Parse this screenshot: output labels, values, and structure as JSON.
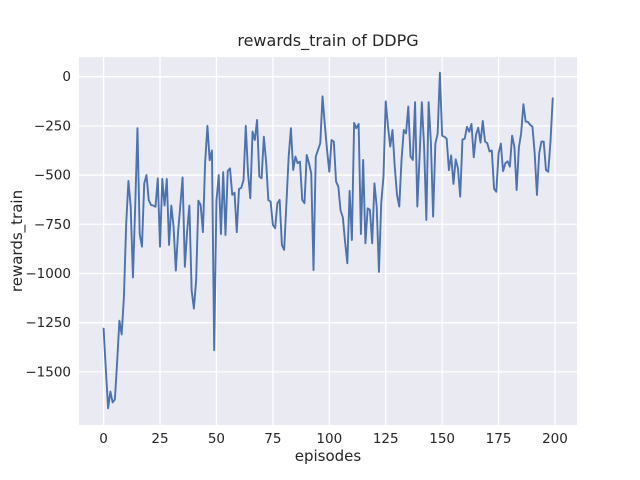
{
  "figure": {
    "title": "rewards_train of DDPG",
    "xlabel": "episodes",
    "ylabel": "rewards_train"
  },
  "colors": {
    "figure_background": "#FFFFFF",
    "plot_background": "#EAEAF2",
    "gridline": "#FFFFFF",
    "line": "#4C72B0",
    "text": "#262626"
  },
  "chart_data": {
    "type": "line",
    "title": "rewards_train of DDPG",
    "xlabel": "episodes",
    "ylabel": "rewards_train",
    "grid": true,
    "legend": false,
    "xlim": [
      -10.9,
      209.75
    ],
    "ylim": [
      -1770,
      100
    ],
    "x_ticks": [
      0,
      25,
      50,
      75,
      100,
      125,
      150,
      175,
      200
    ],
    "x_tick_labels": [
      "0",
      "25",
      "50",
      "75",
      "100",
      "125",
      "150",
      "175",
      "200"
    ],
    "y_ticks": [
      0,
      -250,
      -500,
      -750,
      -1000,
      -1250,
      -1500
    ],
    "y_tick_labels": [
      "0",
      "−250",
      "−500",
      "−750",
      "−1000",
      "−1250",
      "−1500"
    ],
    "series": [
      {
        "name": "rewards_train",
        "color": "#4C72B0",
        "x_start": 0,
        "x_step": 1,
        "values": [
          -1280,
          -1490,
          -1685,
          -1600,
          -1655,
          -1640,
          -1450,
          -1240,
          -1310,
          -1120,
          -750,
          -530,
          -660,
          -1020,
          -660,
          -262,
          -800,
          -864,
          -542,
          -500,
          -627,
          -652,
          -655,
          -661,
          -517,
          -864,
          -520,
          -655,
          -520,
          -855,
          -655,
          -762,
          -985,
          -790,
          -652,
          -512,
          -966,
          -788,
          -655,
          -1085,
          -1178,
          -1034,
          -630,
          -652,
          -790,
          -432,
          -250,
          -425,
          -375,
          -1390,
          -630,
          -500,
          -800,
          -485,
          -805,
          -480,
          -466,
          -600,
          -590,
          -790,
          -570,
          -565,
          -525,
          -250,
          -491,
          -618,
          -279,
          -322,
          -220,
          -508,
          -516,
          -305,
          -432,
          -627,
          -635,
          -753,
          -770,
          -643,
          -626,
          -855,
          -880,
          -643,
          -406,
          -262,
          -474,
          -406,
          -440,
          -432,
          -626,
          -643,
          -398,
          -440,
          -491,
          -983,
          -406,
          -372,
          -338,
          -100,
          -243,
          -372,
          -483,
          -322,
          -330,
          -533,
          -559,
          -680,
          -715,
          -840,
          -948,
          -580,
          -830,
          -235,
          -262,
          -240,
          -800,
          -423,
          -847,
          -669,
          -677,
          -847,
          -542,
          -660,
          -992,
          -643,
          -508,
          -125,
          -253,
          -355,
          -271,
          -457,
          -601,
          -660,
          -423,
          -271,
          -288,
          -152,
          -406,
          -423,
          -130,
          -660,
          -406,
          -130,
          -355,
          -728,
          -130,
          -330,
          -711,
          -340,
          -290,
          20,
          -300,
          -305,
          -315,
          -475,
          -400,
          -545,
          -420,
          -465,
          -610,
          -320,
          -315,
          -255,
          -280,
          -240,
          -410,
          -295,
          -260,
          -335,
          -225,
          -330,
          -338,
          -380,
          -375,
          -570,
          -585,
          -390,
          -340,
          -480,
          -440,
          -430,
          -457,
          -300,
          -355,
          -576,
          -360,
          -288,
          -140,
          -228,
          -230,
          -245,
          -254,
          -389,
          -601,
          -389,
          -330,
          -330,
          -474,
          -483,
          -330,
          -110
        ]
      }
    ]
  },
  "layout_values": {
    "tick_font_px": 13.5,
    "line_width": 1.9,
    "grid_width": 1.3
  }
}
